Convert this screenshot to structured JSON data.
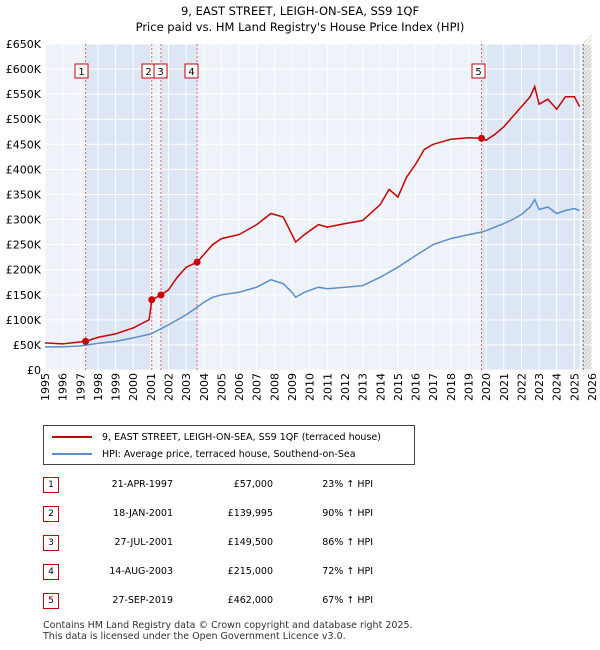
{
  "chart_data": {
    "type": "line",
    "title": "9, EAST STREET, LEIGH-ON-SEA, SS9 1QF",
    "subtitle": "Price paid vs. HM Land Registry's House Price Index (HPI)",
    "xlim": [
      1995,
      2026
    ],
    "ylim": [
      0,
      650000
    ],
    "y_ticks": [
      0,
      50000,
      100000,
      150000,
      200000,
      250000,
      300000,
      350000,
      400000,
      450000,
      500000,
      550000,
      600000,
      650000
    ],
    "y_tick_labels": [
      "£0",
      "£50K",
      "£100K",
      "£150K",
      "£200K",
      "£250K",
      "£300K",
      "£350K",
      "£400K",
      "£450K",
      "£500K",
      "£550K",
      "£600K",
      "£650K"
    ],
    "x_ticks": [
      1995,
      1996,
      1997,
      1998,
      1999,
      2000,
      2001,
      2002,
      2003,
      2004,
      2005,
      2006,
      2007,
      2008,
      2009,
      2010,
      2011,
      2012,
      2013,
      2014,
      2015,
      2016,
      2017,
      2018,
      2019,
      2020,
      2021,
      2022,
      2023,
      2024,
      2025,
      2026
    ],
    "series": [
      {
        "name": "9, EAST STREET, LEIGH-ON-SEA, SS9 1QF (terraced house)",
        "color": "#cc0000",
        "points": [
          [
            1995.0,
            54000
          ],
          [
            1996.0,
            52000
          ],
          [
            1997.3,
            57000
          ],
          [
            1998.0,
            65000
          ],
          [
            1999.0,
            72000
          ],
          [
            2000.0,
            84000
          ],
          [
            2000.9,
            100000
          ],
          [
            2001.05,
            139995
          ],
          [
            2001.57,
            149500
          ],
          [
            2002.0,
            160000
          ],
          [
            2002.5,
            185000
          ],
          [
            2003.0,
            205000
          ],
          [
            2003.62,
            215000
          ],
          [
            2004.0,
            230000
          ],
          [
            2004.5,
            250000
          ],
          [
            2005.0,
            262000
          ],
          [
            2006.0,
            270000
          ],
          [
            2007.0,
            290000
          ],
          [
            2007.8,
            312000
          ],
          [
            2008.5,
            305000
          ],
          [
            2009.0,
            270000
          ],
          [
            2009.2,
            255000
          ],
          [
            2009.7,
            270000
          ],
          [
            2010.5,
            290000
          ],
          [
            2011.0,
            285000
          ],
          [
            2012.0,
            292000
          ],
          [
            2013.0,
            298000
          ],
          [
            2014.0,
            330000
          ],
          [
            2014.5,
            360000
          ],
          [
            2015.0,
            345000
          ],
          [
            2015.5,
            385000
          ],
          [
            2016.0,
            410000
          ],
          [
            2016.5,
            440000
          ],
          [
            2017.0,
            450000
          ],
          [
            2017.5,
            455000
          ],
          [
            2018.0,
            460000
          ],
          [
            2019.0,
            463000
          ],
          [
            2019.74,
            462000
          ],
          [
            2020.0,
            458000
          ],
          [
            2020.5,
            470000
          ],
          [
            2021.0,
            485000
          ],
          [
            2021.5,
            505000
          ],
          [
            2022.0,
            525000
          ],
          [
            2022.5,
            545000
          ],
          [
            2022.75,
            565000
          ],
          [
            2023.0,
            530000
          ],
          [
            2023.5,
            540000
          ],
          [
            2024.0,
            520000
          ],
          [
            2024.5,
            545000
          ],
          [
            2025.0,
            545000
          ],
          [
            2025.3,
            525000
          ]
        ]
      },
      {
        "name": "HPI: Average price, terraced house, Southend-on-Sea",
        "color": "#5b8fcc",
        "points": [
          [
            1995.0,
            46000
          ],
          [
            1996.0,
            46000
          ],
          [
            1997.0,
            48000
          ],
          [
            1998.0,
            53000
          ],
          [
            1999.0,
            57000
          ],
          [
            2000.0,
            64000
          ],
          [
            2001.0,
            72000
          ],
          [
            2002.0,
            90000
          ],
          [
            2003.0,
            110000
          ],
          [
            2003.62,
            125000
          ],
          [
            2004.0,
            135000
          ],
          [
            2004.5,
            145000
          ],
          [
            2005.0,
            150000
          ],
          [
            2006.0,
            155000
          ],
          [
            2007.0,
            165000
          ],
          [
            2007.8,
            180000
          ],
          [
            2008.5,
            172000
          ],
          [
            2009.0,
            155000
          ],
          [
            2009.2,
            145000
          ],
          [
            2009.7,
            155000
          ],
          [
            2010.5,
            165000
          ],
          [
            2011.0,
            162000
          ],
          [
            2012.0,
            165000
          ],
          [
            2013.0,
            168000
          ],
          [
            2014.0,
            185000
          ],
          [
            2015.0,
            205000
          ],
          [
            2016.0,
            228000
          ],
          [
            2017.0,
            250000
          ],
          [
            2018.0,
            262000
          ],
          [
            2019.0,
            270000
          ],
          [
            2019.74,
            275000
          ],
          [
            2020.0,
            278000
          ],
          [
            2020.5,
            285000
          ],
          [
            2021.0,
            292000
          ],
          [
            2021.5,
            300000
          ],
          [
            2022.0,
            310000
          ],
          [
            2022.5,
            325000
          ],
          [
            2022.75,
            340000
          ],
          [
            2023.0,
            320000
          ],
          [
            2023.5,
            325000
          ],
          [
            2024.0,
            312000
          ],
          [
            2024.5,
            318000
          ],
          [
            2025.0,
            322000
          ],
          [
            2025.3,
            318000
          ]
        ]
      }
    ],
    "sales": [
      {
        "label": "1",
        "x": 1997.3,
        "price": 57000
      },
      {
        "label": "2",
        "x": 2001.05,
        "price": 139995
      },
      {
        "label": "3",
        "x": 2001.57,
        "price": 149500
      },
      {
        "label": "4",
        "x": 2003.62,
        "price": 215000
      },
      {
        "label": "5",
        "x": 2019.74,
        "price": 462000
      }
    ],
    "shaded_ranges": [
      [
        1997.3,
        2001.05
      ],
      [
        2001.57,
        2003.62
      ],
      [
        2019.74,
        2025.3
      ]
    ],
    "future_start": 2025.5
  },
  "legend": {
    "property": "9, EAST STREET, LEIGH-ON-SEA, SS9 1QF (terraced house)",
    "hpi": "HPI: Average price, terraced house, Southend-on-Sea"
  },
  "table": [
    {
      "num": "1",
      "date": "21-APR-1997",
      "price": "£57,000",
      "hpi": "23% ↑ HPI"
    },
    {
      "num": "2",
      "date": "18-JAN-2001",
      "price": "£139,995",
      "hpi": "90% ↑ HPI"
    },
    {
      "num": "3",
      "date": "27-JUL-2001",
      "price": "£149,500",
      "hpi": "86% ↑ HPI"
    },
    {
      "num": "4",
      "date": "14-AUG-2003",
      "price": "£215,000",
      "hpi": "72% ↑ HPI"
    },
    {
      "num": "5",
      "date": "27-SEP-2019",
      "price": "£462,000",
      "hpi": "67% ↑ HPI"
    }
  ],
  "footer": {
    "line1": "Contains HM Land Registry data © Crown copyright and database right 2025.",
    "line2": "This data is licensed under the Open Government Licence v3.0."
  }
}
